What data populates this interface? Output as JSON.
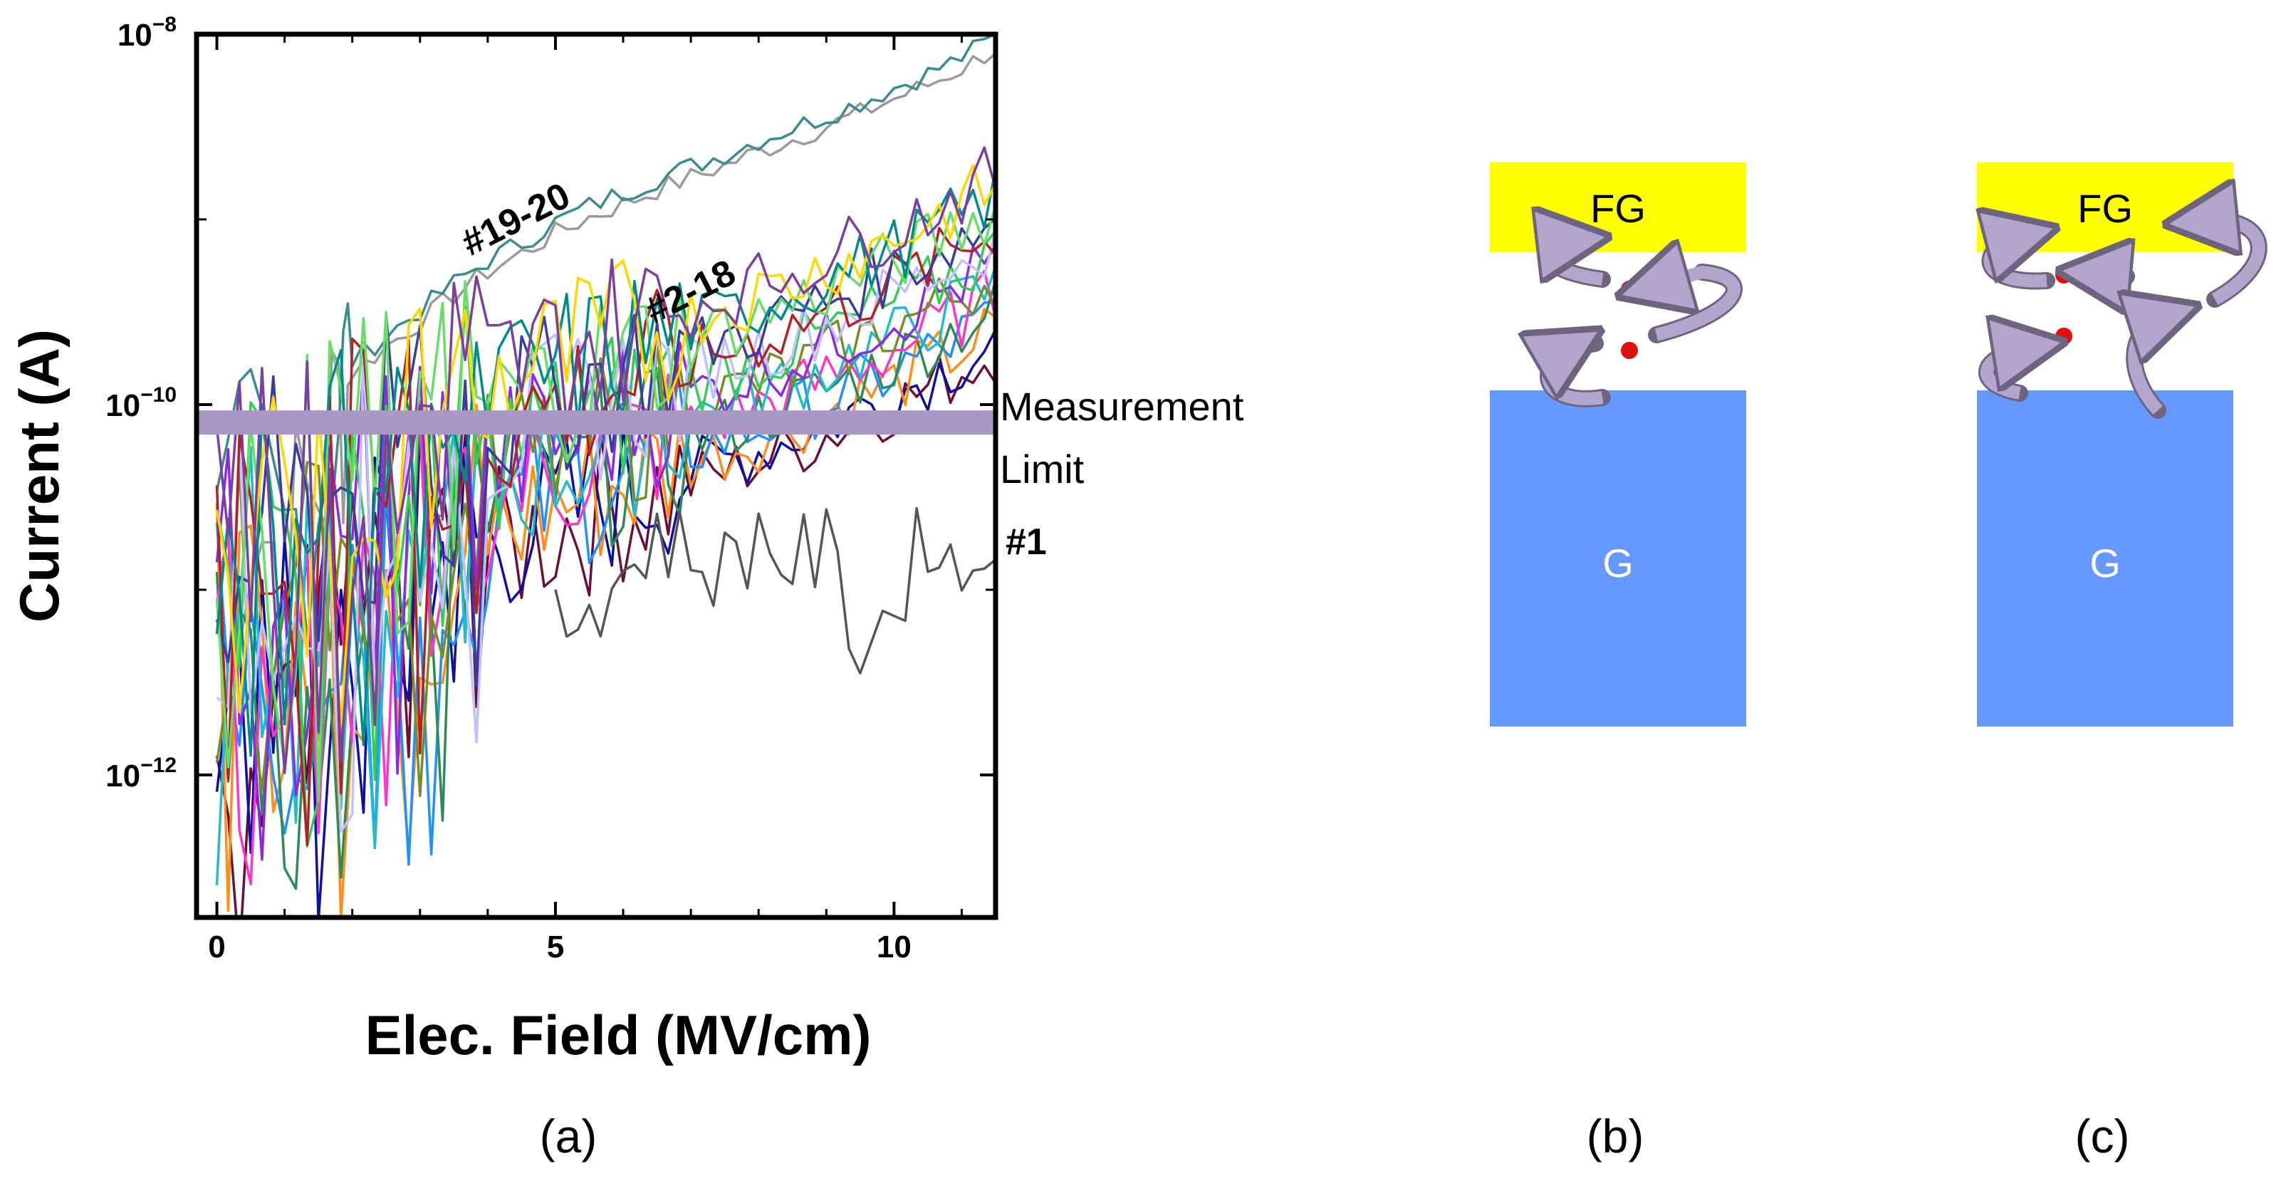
{
  "chart_data": {
    "type": "line",
    "xlabel": "Elec. Field (MV/cm)",
    "ylabel": "Current (A)",
    "x_scale": "linear",
    "y_scale": "log",
    "xlim": [
      -0.3,
      11.5
    ],
    "ylim": [
      1.7e-13,
      1e-08
    ],
    "x_ticks": [
      0,
      5,
      10
    ],
    "x_tick_labels": [
      "0",
      "5",
      "10"
    ],
    "y_ticks": [
      1e-12,
      1e-10,
      1e-08
    ],
    "y_tick_labels": [
      {
        "base": "10",
        "exp": "−12"
      },
      {
        "base": "10",
        "exp": "−10"
      },
      {
        "base": "10",
        "exp": "−8"
      }
    ],
    "measurement_limit": {
      "label_line1": "Measurement",
      "label_line2": "Limit",
      "y": 8e-11,
      "color": "#a898c4"
    },
    "annotations": [
      "#19-20",
      "#2-18",
      "#1"
    ],
    "series_groups": [
      {
        "label": "#19-20",
        "colors": [
          "#9a9a9a",
          "#3a8c8c"
        ],
        "x": [
          0,
          0.5,
          1.0,
          1.5,
          1.8,
          2.0,
          2.5,
          3.0,
          3.5,
          4.0,
          4.5,
          5.0,
          5.5,
          6.0,
          6.5,
          7.0,
          7.5,
          8.0,
          8.5,
          9.0,
          9.5,
          10.0,
          10.5,
          11.0,
          11.5
        ],
        "y": [
          1.2e-11,
          3e-11,
          1.5e-11,
          4e-11,
          1e-10,
          1.6e-10,
          2.2e-10,
          3e-10,
          4.2e-10,
          5.6e-10,
          7e-10,
          9e-10,
          1.1e-09,
          1.3e-09,
          1.55e-09,
          1.8e-09,
          2.1e-09,
          2.5e-09,
          2.9e-09,
          3.4e-09,
          4e-09,
          4.8e-09,
          5.7e-09,
          7e-09,
          9e-09
        ]
      },
      {
        "label": "#2-18",
        "colors": [
          "#6b0f3a",
          "#1010a0",
          "#ff8c1a",
          "#1e90ff",
          "#2e8b57",
          "#ff33cc",
          "#22bbcc",
          "#7a8c2a",
          "#8a2be2",
          "#33cc55",
          "#c0c0ff",
          "#b22222",
          "#3c3c9c",
          "#66dd66",
          "#008b8b",
          "#ffd700",
          "#7b3fa0"
        ],
        "x": [
          0,
          0.5,
          1.0,
          1.5,
          2.0,
          2.5,
          3.0,
          3.5,
          4.0,
          4.5,
          5.0,
          5.5,
          6.0,
          6.5,
          7.0,
          7.5,
          8.0,
          8.5,
          9.0,
          9.5,
          10.0,
          10.5,
          11.0,
          11.5
        ],
        "y": [
          1e-11,
          1.2e-11,
          1e-11,
          1.5e-11,
          2e-11,
          2.6e-11,
          3.3e-11,
          4e-11,
          4.8e-11,
          5.6e-11,
          6.6e-11,
          7.6e-11,
          8.8e-11,
          1e-10,
          1.15e-10,
          1.3e-10,
          1.5e-10,
          1.75e-10,
          2.1e-10,
          2.5e-10,
          3e-10,
          3.7e-10,
          4.6e-10,
          5.8e-10
        ]
      },
      {
        "label": "#1",
        "colors": [
          "#555555"
        ],
        "x": [
          5.0,
          5.5,
          6.0,
          6.5,
          7.0,
          7.5,
          8.0,
          8.5,
          9.0,
          9.5,
          10.0,
          10.5,
          11.0,
          11.5
        ],
        "y": [
          6e-12,
          9e-12,
          1.2e-11,
          2e-11,
          1.5e-11,
          1.3e-11,
          2e-11,
          1.4e-11,
          1.6e-11,
          5e-12,
          8e-12,
          2.2e-11,
          1.1e-11,
          2.5e-11
        ]
      }
    ]
  },
  "diagram_b": {
    "panel_label": "(b)",
    "top_label": "FG",
    "bottom_label": "G",
    "top_color": "#ffff00",
    "bottom_color": "#6699ff",
    "charge_color": "#e01010",
    "arrow_color": "#b3a6cc"
  },
  "diagram_c": {
    "panel_label": "(c)",
    "top_label": "FG",
    "bottom_label": "G",
    "top_color": "#ffff00",
    "bottom_color": "#6699ff",
    "charge_color": "#e01010",
    "arrow_color": "#b3a6cc"
  },
  "panel_a_label": "(a)"
}
